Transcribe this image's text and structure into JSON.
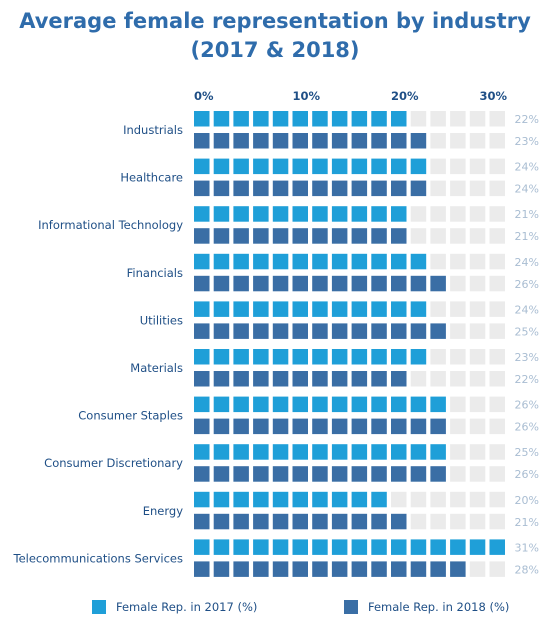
{
  "title": {
    "line1": "Average female representation by industry",
    "line2": "(2017 & 2018)"
  },
  "colors": {
    "series_2017": "#1f9fd8",
    "series_2018": "#3a6ea5",
    "empty": "#ebebeb",
    "category_text": "#1f4f86",
    "value_text": "#a9bdd2",
    "tick_text": "#1f4f86"
  },
  "chart_data": {
    "type": "bar",
    "xlim": [
      0,
      32
    ],
    "x_ticks": [
      "0%",
      "10%",
      "20%",
      "30%"
    ],
    "categories": [
      "Industrials",
      "Healthcare",
      "Informational Technology",
      "Financials",
      "Utilities",
      "Materials",
      "Consumer Staples",
      "Consumer Discretionary",
      "Energy",
      "Telecommunications Services"
    ],
    "series": [
      {
        "name": "Female Rep. in 2017 (%)",
        "values": [
          22,
          24,
          21,
          24,
          24,
          23,
          26,
          25,
          20,
          31
        ],
        "labels": [
          "22%",
          "24%",
          "21%",
          "24%",
          "24%",
          "23%",
          "26%",
          "25%",
          "20%",
          "31%"
        ]
      },
      {
        "name": "Female Rep. in 2018 (%)",
        "values": [
          23,
          24,
          21,
          26,
          25,
          22,
          26,
          26,
          21,
          28
        ],
        "labels": [
          "23%",
          "24%",
          "21%",
          "26%",
          "25%",
          "22%",
          "26%",
          "26%",
          "21%",
          "28%"
        ]
      }
    ],
    "legend_position": "bottom"
  }
}
